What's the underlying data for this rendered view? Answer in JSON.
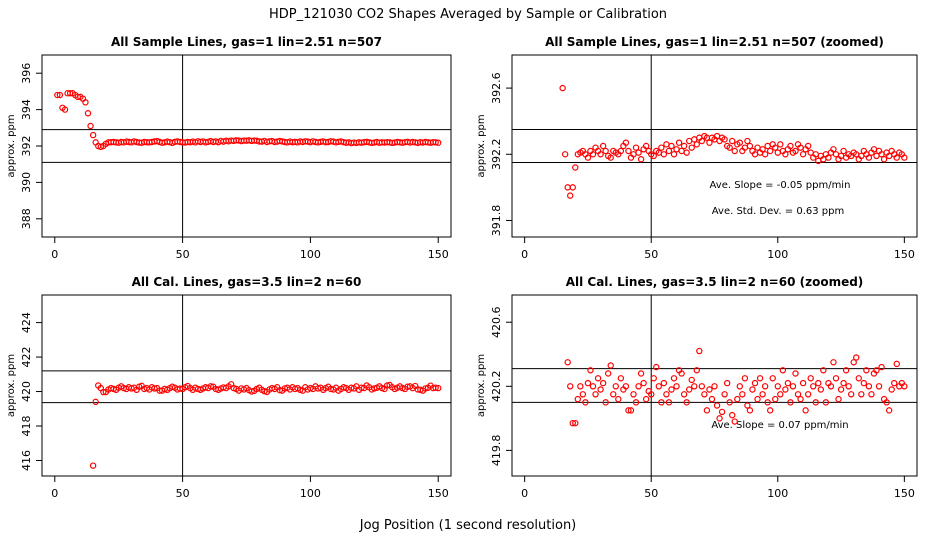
{
  "title": "HDP_121030  CO2 Shapes Averaged by Sample or Calibration",
  "xlabel": "Jog Position (1 second resolution)",
  "chart_data": [
    {
      "type": "scatter",
      "title": "All Sample Lines, gas=1 lin=2.51 n=507",
      "ylabel": "approx. ppm",
      "color": "#ff0000",
      "xlim": [
        -5,
        155
      ],
      "ylim": [
        387,
        397
      ],
      "xticks": [
        0,
        50,
        100,
        150
      ],
      "yticks": [
        388,
        390,
        392,
        394,
        396
      ],
      "hlines": [
        392.9,
        391.1
      ],
      "vlines": [
        50
      ],
      "annotations": [],
      "x": [
        1,
        2,
        3,
        4,
        5,
        6,
        7,
        8,
        9,
        10,
        11,
        12,
        13,
        14,
        15,
        16,
        17,
        18,
        19,
        20,
        21,
        22,
        23,
        24,
        25,
        26,
        27,
        28,
        29,
        30,
        31,
        32,
        33,
        34,
        35,
        36,
        37,
        38,
        39,
        40,
        41,
        42,
        43,
        44,
        45,
        46,
        47,
        48,
        49,
        50,
        51,
        52,
        53,
        54,
        55,
        56,
        57,
        58,
        59,
        60,
        61,
        62,
        63,
        64,
        65,
        66,
        67,
        68,
        69,
        70,
        71,
        72,
        73,
        74,
        75,
        76,
        77,
        78,
        79,
        80,
        81,
        82,
        83,
        84,
        85,
        86,
        87,
        88,
        89,
        90,
        91,
        92,
        93,
        94,
        95,
        96,
        97,
        98,
        99,
        100,
        101,
        102,
        103,
        104,
        105,
        106,
        107,
        108,
        109,
        110,
        111,
        112,
        113,
        114,
        115,
        116,
        117,
        118,
        119,
        120,
        121,
        122,
        123,
        124,
        125,
        126,
        127,
        128,
        129,
        130,
        131,
        132,
        133,
        134,
        135,
        136,
        137,
        138,
        139,
        140,
        141,
        142,
        143,
        144,
        145,
        146,
        147,
        148,
        149,
        150
      ],
      "values": [
        394.8,
        394.8,
        394.1,
        394.0,
        394.9,
        394.9,
        394.9,
        394.8,
        394.7,
        394.7,
        394.6,
        394.4,
        393.8,
        393.1,
        392.6,
        392.2,
        392.0,
        391.95,
        392.0,
        392.12,
        392.2,
        392.21,
        392.22,
        392.2,
        392.18,
        392.22,
        392.2,
        392.24,
        392.22,
        392.2,
        392.25,
        392.22,
        392.19,
        392.18,
        392.22,
        392.21,
        392.2,
        392.22,
        392.25,
        392.27,
        392.22,
        392.18,
        392.2,
        392.24,
        392.21,
        392.17,
        392.23,
        392.25,
        392.22,
        392.2,
        392.19,
        392.22,
        392.21,
        392.24,
        392.2,
        392.26,
        392.22,
        392.25,
        392.2,
        392.23,
        392.27,
        392.22,
        392.25,
        392.21,
        392.28,
        392.24,
        392.29,
        392.26,
        392.3,
        392.28,
        392.31,
        392.3,
        392.27,
        392.3,
        392.29,
        392.31,
        392.28,
        392.3,
        392.29,
        392.25,
        392.24,
        392.28,
        392.22,
        392.26,
        392.27,
        392.22,
        392.24,
        392.28,
        392.25,
        392.22,
        392.2,
        392.24,
        392.21,
        392.23,
        392.2,
        392.25,
        392.22,
        392.26,
        392.24,
        392.21,
        392.26,
        392.22,
        392.2,
        392.23,
        392.25,
        392.21,
        392.22,
        392.26,
        392.24,
        392.2,
        392.23,
        392.25,
        392.21,
        392.18,
        392.2,
        392.16,
        392.19,
        392.17,
        392.2,
        392.18,
        392.21,
        392.23,
        392.2,
        392.17,
        392.19,
        392.22,
        392.18,
        392.2,
        392.19,
        392.21,
        392.2,
        392.17,
        392.19,
        392.22,
        392.2,
        392.18,
        392.21,
        392.23,
        392.19,
        392.22,
        392.2,
        392.17,
        392.21,
        392.19,
        392.22,
        392.2,
        392.18,
        392.21,
        392.2,
        392.18
      ]
    },
    {
      "type": "scatter",
      "title": "All Sample Lines, gas=1 lin=2.51 n=507 (zoomed)",
      "ylabel": "approx. ppm",
      "color": "#ff0000",
      "xlim": [
        -5,
        155
      ],
      "ylim": [
        391.7,
        392.8
      ],
      "xticks": [
        0,
        50,
        100,
        150
      ],
      "yticks": [
        391.8,
        392.2,
        392.6
      ],
      "hlines": [
        392.35,
        392.15
      ],
      "vlines": [
        50
      ],
      "annotations": [
        "Ave. Slope =  -0.05  ppm/min",
        "Ave. Std. Dev. =  0.63  ppm"
      ],
      "x": [
        15,
        16,
        17,
        18,
        19,
        20,
        21,
        22,
        23,
        24,
        25,
        26,
        27,
        28,
        29,
        30,
        31,
        32,
        33,
        34,
        35,
        36,
        37,
        38,
        39,
        40,
        41,
        42,
        43,
        44,
        45,
        46,
        47,
        48,
        49,
        50,
        51,
        52,
        53,
        54,
        55,
        56,
        57,
        58,
        59,
        60,
        61,
        62,
        63,
        64,
        65,
        66,
        67,
        68,
        69,
        70,
        71,
        72,
        73,
        74,
        75,
        76,
        77,
        78,
        79,
        80,
        81,
        82,
        83,
        84,
        85,
        86,
        87,
        88,
        89,
        90,
        91,
        92,
        93,
        94,
        95,
        96,
        97,
        98,
        99,
        100,
        101,
        102,
        103,
        104,
        105,
        106,
        107,
        108,
        109,
        110,
        111,
        112,
        113,
        114,
        115,
        116,
        117,
        118,
        119,
        120,
        121,
        122,
        123,
        124,
        125,
        126,
        127,
        128,
        129,
        130,
        131,
        132,
        133,
        134,
        135,
        136,
        137,
        138,
        139,
        140,
        141,
        142,
        143,
        144,
        145,
        146,
        147,
        148,
        149,
        150
      ],
      "values": [
        392.6,
        392.2,
        392.0,
        391.95,
        392.0,
        392.12,
        392.2,
        392.21,
        392.22,
        392.2,
        392.18,
        392.22,
        392.2,
        392.24,
        392.22,
        392.2,
        392.25,
        392.22,
        392.19,
        392.18,
        392.22,
        392.21,
        392.2,
        392.22,
        392.25,
        392.27,
        392.22,
        392.18,
        392.2,
        392.24,
        392.21,
        392.17,
        392.23,
        392.25,
        392.22,
        392.2,
        392.19,
        392.22,
        392.21,
        392.24,
        392.2,
        392.26,
        392.22,
        392.25,
        392.2,
        392.23,
        392.27,
        392.22,
        392.25,
        392.21,
        392.28,
        392.24,
        392.29,
        392.26,
        392.3,
        392.28,
        392.31,
        392.3,
        392.27,
        392.3,
        392.29,
        392.31,
        392.28,
        392.3,
        392.29,
        392.25,
        392.24,
        392.28,
        392.22,
        392.26,
        392.27,
        392.22,
        392.24,
        392.28,
        392.25,
        392.22,
        392.2,
        392.24,
        392.21,
        392.23,
        392.2,
        392.25,
        392.22,
        392.26,
        392.24,
        392.21,
        392.26,
        392.22,
        392.2,
        392.23,
        392.25,
        392.21,
        392.22,
        392.26,
        392.24,
        392.2,
        392.23,
        392.25,
        392.21,
        392.18,
        392.2,
        392.16,
        392.19,
        392.17,
        392.2,
        392.18,
        392.21,
        392.23,
        392.2,
        392.17,
        392.19,
        392.22,
        392.18,
        392.2,
        392.19,
        392.21,
        392.2,
        392.17,
        392.19,
        392.22,
        392.2,
        392.18,
        392.21,
        392.23,
        392.19,
        392.22,
        392.2,
        392.17,
        392.21,
        392.19,
        392.22,
        392.2,
        392.18,
        392.21,
        392.2,
        392.18
      ]
    },
    {
      "type": "scatter",
      "title": "All Cal. Lines, gas=3.5 lin=2 n=60",
      "ylabel": "approx. ppm",
      "color": "#ff0000",
      "xlim": [
        -5,
        155
      ],
      "ylim": [
        415.1,
        425.6
      ],
      "xticks": [
        0,
        50,
        100,
        150
      ],
      "yticks": [
        416,
        418,
        420,
        422,
        424
      ],
      "hlines": [
        421.2,
        419.36
      ],
      "vlines": [
        50
      ],
      "annotations": [],
      "x": [
        15,
        16,
        17,
        18,
        19,
        20,
        21,
        22,
        23,
        24,
        25,
        26,
        27,
        28,
        29,
        30,
        31,
        32,
        33,
        34,
        35,
        36,
        37,
        38,
        39,
        40,
        41,
        42,
        43,
        44,
        45,
        46,
        47,
        48,
        49,
        50,
        51,
        52,
        53,
        54,
        55,
        56,
        57,
        58,
        59,
        60,
        61,
        62,
        63,
        64,
        65,
        66,
        67,
        68,
        69,
        70,
        71,
        72,
        73,
        74,
        75,
        76,
        77,
        78,
        79,
        80,
        81,
        82,
        83,
        84,
        85,
        86,
        87,
        88,
        89,
        90,
        91,
        92,
        93,
        94,
        95,
        96,
        97,
        98,
        99,
        100,
        101,
        102,
        103,
        104,
        105,
        106,
        107,
        108,
        109,
        110,
        111,
        112,
        113,
        114,
        115,
        116,
        117,
        118,
        119,
        120,
        121,
        122,
        123,
        124,
        125,
        126,
        127,
        128,
        129,
        130,
        131,
        132,
        133,
        134,
        135,
        136,
        137,
        138,
        139,
        140,
        141,
        142,
        143,
        144,
        145,
        146,
        147,
        148,
        149,
        150
      ],
      "values": [
        415.7,
        419.4,
        420.35,
        420.2,
        419.97,
        419.97,
        420.12,
        420.2,
        420.15,
        420.1,
        420.22,
        420.3,
        420.2,
        420.15,
        420.25,
        420.18,
        420.22,
        420.1,
        420.28,
        420.33,
        420.15,
        420.2,
        420.12,
        420.25,
        420.18,
        420.2,
        420.05,
        420.05,
        420.15,
        420.1,
        420.2,
        420.28,
        420.22,
        420.12,
        420.17,
        420.15,
        420.25,
        420.32,
        420.2,
        420.1,
        420.22,
        420.15,
        420.1,
        420.18,
        420.25,
        420.2,
        420.3,
        420.28,
        420.15,
        420.1,
        420.18,
        420.24,
        420.2,
        420.3,
        420.42,
        420.2,
        420.15,
        420.05,
        420.18,
        420.12,
        420.2,
        420.08,
        420.0,
        420.04,
        420.15,
        420.22,
        420.1,
        420.02,
        419.98,
        420.12,
        420.2,
        420.15,
        420.25,
        420.08,
        420.05,
        420.18,
        420.22,
        420.12,
        420.25,
        420.15,
        420.2,
        420.1,
        420.05,
        420.25,
        420.12,
        420.2,
        420.15,
        420.3,
        420.18,
        420.22,
        420.1,
        420.2,
        420.28,
        420.15,
        420.12,
        420.22,
        420.05,
        420.15,
        420.25,
        420.2,
        420.1,
        420.22,
        420.18,
        420.3,
        420.1,
        420.22,
        420.2,
        420.35,
        420.25,
        420.12,
        420.18,
        420.22,
        420.3,
        420.2,
        420.15,
        420.35,
        420.38,
        420.25,
        420.15,
        420.22,
        420.3,
        420.2,
        420.15,
        420.28,
        420.3,
        420.2,
        420.32,
        420.12,
        420.1,
        420.05,
        420.18,
        420.22,
        420.34,
        420.2,
        420.22,
        420.2
      ]
    },
    {
      "type": "scatter",
      "title": "All Cal. Lines, gas=3.5 lin=2 n=60 (zoomed)",
      "ylabel": "approx. ppm",
      "color": "#ff0000",
      "xlim": [
        -5,
        155
      ],
      "ylim": [
        419.64,
        420.77
      ],
      "xticks": [
        0,
        50,
        100,
        150
      ],
      "yticks": [
        419.8,
        420.2,
        420.6
      ],
      "hlines": [
        420.31,
        420.1
      ],
      "vlines": [
        50
      ],
      "annotations": [
        "Ave. Slope =  0.07  ppm/min"
      ],
      "x": [
        17,
        18,
        19,
        20,
        21,
        22,
        23,
        24,
        25,
        26,
        27,
        28,
        29,
        30,
        31,
        32,
        33,
        34,
        35,
        36,
        37,
        38,
        39,
        40,
        41,
        42,
        43,
        44,
        45,
        46,
        47,
        48,
        49,
        50,
        51,
        52,
        53,
        54,
        55,
        56,
        57,
        58,
        59,
        60,
        61,
        62,
        63,
        64,
        65,
        66,
        67,
        68,
        69,
        70,
        71,
        72,
        73,
        74,
        75,
        76,
        77,
        78,
        79,
        80,
        81,
        82,
        83,
        84,
        85,
        86,
        87,
        88,
        89,
        90,
        91,
        92,
        93,
        94,
        95,
        96,
        97,
        98,
        99,
        100,
        101,
        102,
        103,
        104,
        105,
        106,
        107,
        108,
        109,
        110,
        111,
        112,
        113,
        114,
        115,
        116,
        117,
        118,
        119,
        120,
        121,
        122,
        123,
        124,
        125,
        126,
        127,
        128,
        129,
        130,
        131,
        132,
        133,
        134,
        135,
        136,
        137,
        138,
        139,
        140,
        141,
        142,
        143,
        144,
        145,
        146,
        147,
        148,
        149,
        150
      ],
      "values": [
        420.35,
        420.2,
        419.97,
        419.97,
        420.12,
        420.2,
        420.15,
        420.1,
        420.22,
        420.3,
        420.2,
        420.15,
        420.25,
        420.18,
        420.22,
        420.1,
        420.28,
        420.33,
        420.15,
        420.2,
        420.12,
        420.25,
        420.18,
        420.2,
        420.05,
        420.05,
        420.15,
        420.1,
        420.2,
        420.28,
        420.22,
        420.12,
        420.17,
        420.15,
        420.25,
        420.32,
        420.2,
        420.1,
        420.22,
        420.15,
        420.1,
        420.18,
        420.25,
        420.2,
        420.3,
        420.28,
        420.15,
        420.1,
        420.18,
        420.24,
        420.2,
        420.3,
        420.42,
        420.2,
        420.15,
        420.05,
        420.18,
        420.12,
        420.2,
        420.08,
        420.0,
        420.04,
        420.15,
        420.22,
        420.1,
        420.02,
        419.98,
        420.12,
        420.2,
        420.15,
        420.25,
        420.08,
        420.05,
        420.18,
        420.22,
        420.12,
        420.25,
        420.15,
        420.2,
        420.1,
        420.05,
        420.25,
        420.12,
        420.2,
        420.15,
        420.3,
        420.18,
        420.22,
        420.1,
        420.2,
        420.28,
        420.15,
        420.12,
        420.22,
        420.05,
        420.15,
        420.25,
        420.2,
        420.1,
        420.22,
        420.18,
        420.3,
        420.1,
        420.22,
        420.2,
        420.35,
        420.25,
        420.12,
        420.18,
        420.22,
        420.3,
        420.2,
        420.15,
        420.35,
        420.38,
        420.25,
        420.15,
        420.22,
        420.3,
        420.2,
        420.15,
        420.28,
        420.3,
        420.2,
        420.32,
        420.12,
        420.1,
        420.05,
        420.18,
        420.22,
        420.34,
        420.2,
        420.22,
        420.2
      ]
    }
  ]
}
